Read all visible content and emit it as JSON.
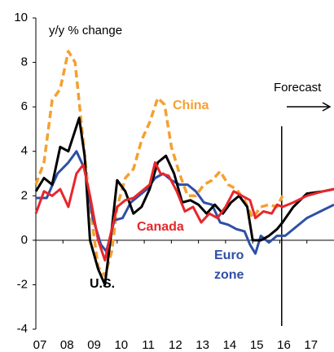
{
  "chart_data": {
    "type": "line",
    "y_label": "y/y % change",
    "annotation": "Forecast",
    "forecast_x": 2016.07,
    "xlim": [
      2007,
      2018
    ],
    "ylim": [
      -4,
      10
    ],
    "yticks": [
      -4,
      -2,
      0,
      2,
      4,
      6,
      8,
      10
    ],
    "xticks": [
      {
        "value": 2007,
        "label": "07"
      },
      {
        "value": 2008,
        "label": "08"
      },
      {
        "value": 2009,
        "label": "09"
      },
      {
        "value": 2010,
        "label": "10"
      },
      {
        "value": 2011,
        "label": "11"
      },
      {
        "value": 2012,
        "label": "12"
      },
      {
        "value": 2013,
        "label": "13"
      },
      {
        "value": 2014,
        "label": "14"
      },
      {
        "value": 2015,
        "label": "15"
      },
      {
        "value": 2016,
        "label": "16"
      },
      {
        "value": 2017,
        "label": "17"
      }
    ],
    "series": [
      {
        "name": "China",
        "color": "#f5a031",
        "dashed": true,
        "x": [
          2007,
          2007.3,
          2007.6,
          2007.9,
          2008.2,
          2008.45,
          2008.7,
          2009.0,
          2009.3,
          2009.55,
          2009.8,
          2010.0,
          2010.3,
          2010.6,
          2010.9,
          2011.2,
          2011.5,
          2011.75,
          2012.0,
          2012.3,
          2012.6,
          2012.9,
          2013.2,
          2013.5,
          2013.8,
          2014.1,
          2014.4,
          2014.7,
          2015.0,
          2015.3,
          2015.6,
          2015.9,
          2016.1
        ],
        "values": [
          2.5,
          3.5,
          6.3,
          6.8,
          8.5,
          8.0,
          5.0,
          1.5,
          -1.2,
          -1.6,
          -0.5,
          1.5,
          2.8,
          3.2,
          4.5,
          5.3,
          6.4,
          6.1,
          4.2,
          3.0,
          2.0,
          2.0,
          2.5,
          2.7,
          3.1,
          2.5,
          2.3,
          1.8,
          1.0,
          1.5,
          1.6,
          1.5,
          2.0
        ]
      },
      {
        "name": "Euro zone",
        "color": "#2e4fa6",
        "dashed": false,
        "x": [
          2007,
          2007.4,
          2007.8,
          2008.2,
          2008.5,
          2008.8,
          2009.1,
          2009.4,
          2009.6,
          2009.9,
          2010.2,
          2010.5,
          2010.8,
          2011.1,
          2011.4,
          2011.7,
          2012.0,
          2012.3,
          2012.6,
          2012.9,
          2013.2,
          2013.5,
          2013.8,
          2014.1,
          2014.4,
          2014.7,
          2014.9,
          2015.1,
          2015.3,
          2015.6,
          2015.9,
          2016.2,
          2016.6,
          2017.0,
          2017.5,
          2018
        ],
        "values": [
          1.9,
          1.9,
          3.0,
          3.5,
          4.0,
          3.2,
          1.0,
          -0.2,
          -0.5,
          0.9,
          1.0,
          1.7,
          2.0,
          2.3,
          2.8,
          3.0,
          2.7,
          2.5,
          2.5,
          2.2,
          1.7,
          1.6,
          0.8,
          0.7,
          0.5,
          0.4,
          -0.2,
          -0.6,
          0.2,
          -0.1,
          0.2,
          0.2,
          0.6,
          1.0,
          1.3,
          1.6
        ]
      },
      {
        "name": "U.S.",
        "color": "#000000",
        "dashed": false,
        "x": [
          2007,
          2007.3,
          2007.6,
          2007.9,
          2008.2,
          2008.6,
          2008.8,
          2009.0,
          2009.3,
          2009.55,
          2009.8,
          2010.0,
          2010.3,
          2010.6,
          2010.9,
          2011.2,
          2011.5,
          2011.8,
          2012.1,
          2012.4,
          2012.7,
          2013.0,
          2013.3,
          2013.6,
          2013.9,
          2014.2,
          2014.5,
          2014.8,
          2015.0,
          2015.3,
          2015.6,
          2015.9,
          2016.1,
          2016.5,
          2017.0,
          2017.6,
          2018
        ],
        "values": [
          2.2,
          2.8,
          2.5,
          4.2,
          4.0,
          5.5,
          3.8,
          0.0,
          -1.3,
          -2.0,
          0.5,
          2.7,
          2.2,
          1.2,
          1.5,
          2.3,
          3.5,
          3.8,
          3.0,
          1.7,
          1.8,
          1.6,
          1.2,
          1.6,
          1.2,
          1.7,
          2.0,
          1.5,
          0.0,
          0.0,
          0.2,
          0.5,
          0.8,
          1.5,
          2.1,
          2.2,
          2.3
        ]
      },
      {
        "name": "Canada",
        "color": "#e8262a",
        "dashed": false,
        "x": [
          2007,
          2007.3,
          2007.6,
          2007.9,
          2008.2,
          2008.5,
          2008.75,
          2009.0,
          2009.3,
          2009.55,
          2009.8,
          2010.0,
          2010.3,
          2010.6,
          2010.9,
          2011.2,
          2011.4,
          2011.6,
          2011.9,
          2012.2,
          2012.5,
          2012.8,
          2013.1,
          2013.4,
          2013.7,
          2014.0,
          2014.3,
          2014.6,
          2014.9,
          2015.1,
          2015.4,
          2015.7,
          2015.9,
          2016.1,
          2016.5,
          2017.0,
          2017.6,
          2018
        ],
        "values": [
          1.2,
          2.2,
          2.0,
          2.3,
          1.5,
          3.0,
          3.4,
          2.0,
          0.0,
          -0.9,
          0.5,
          1.5,
          1.8,
          1.9,
          2.2,
          2.5,
          3.5,
          3.0,
          2.9,
          2.2,
          1.3,
          1.5,
          0.8,
          1.2,
          1.0,
          1.5,
          2.2,
          2.0,
          1.8,
          1.0,
          1.3,
          1.2,
          1.6,
          1.5,
          1.7,
          2.0,
          2.2,
          2.3
        ]
      }
    ]
  }
}
